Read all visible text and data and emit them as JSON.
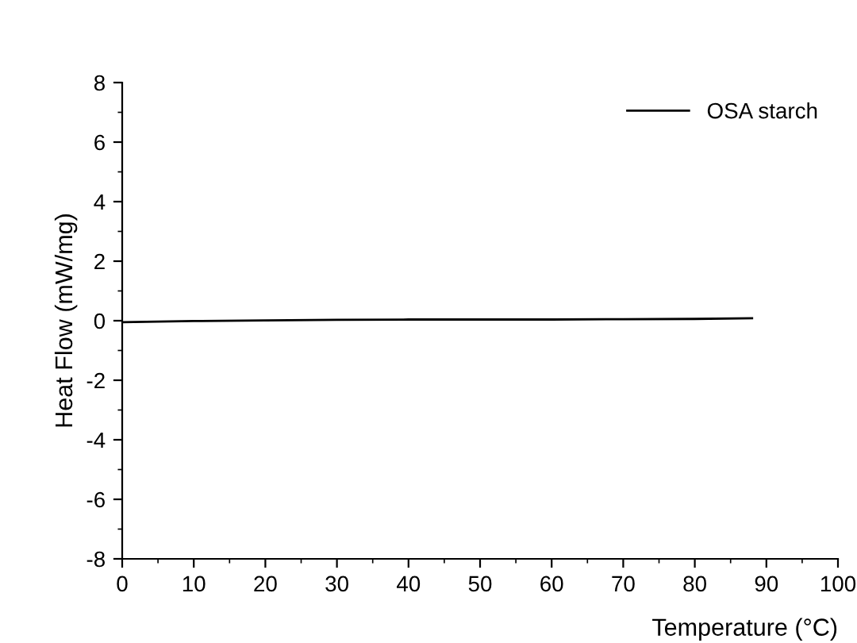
{
  "chart_data": {
    "type": "line",
    "xlabel": "Temperature (°C)",
    "ylabel": "Heat Flow (mW/mg)",
    "x": [
      0,
      5,
      10,
      20,
      30,
      40,
      50,
      60,
      70,
      80,
      88
    ],
    "series": [
      {
        "name": "OSA starch",
        "color": "#000000",
        "values": [
          -0.05,
          -0.03,
          -0.01,
          0.01,
          0.03,
          0.04,
          0.04,
          0.04,
          0.05,
          0.06,
          0.08
        ]
      }
    ],
    "xlim": [
      0,
      100
    ],
    "ylim": [
      -8,
      8
    ],
    "xticks": [
      0,
      10,
      20,
      30,
      40,
      50,
      60,
      70,
      80,
      90,
      100
    ],
    "yticks": [
      -8,
      -6,
      -4,
      -2,
      0,
      2,
      4,
      6,
      8
    ],
    "grid": false,
    "legend": "top right",
    "marker": "none",
    "line_style": "solid"
  }
}
